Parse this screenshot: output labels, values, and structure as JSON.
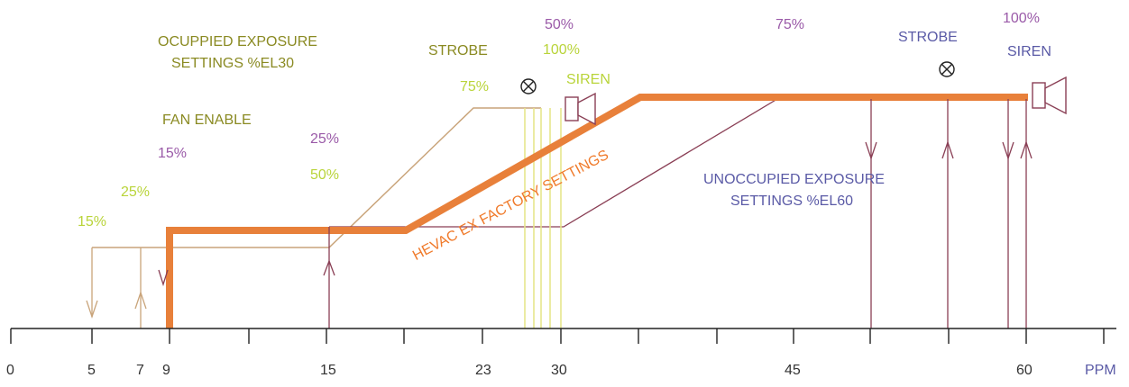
{
  "labels": {
    "occupied_line1": "OCUPPIED EXPOSURE",
    "occupied_line2": "SETTINGS %EL30",
    "fan_enable": "FAN ENABLE",
    "strobe_left": "STROBE",
    "siren_left": "SIREN",
    "strobe_right": "STROBE",
    "siren_right": "SIREN",
    "unoccupied_line1": "UNOCCUPIED EXPOSURE",
    "unoccupied_line2": "SETTINGS %EL60",
    "hevac": "HEVAC EX FACTORY SETTINGS",
    "ppm": "PPM"
  },
  "percentages": {
    "p15_purple": "15%",
    "p25_purple": "25%",
    "p50_purple": "50%",
    "p75_purple": "75%",
    "p100_purple": "100%",
    "p15_green": "15%",
    "p25_green": "25%",
    "p50_green": "50%",
    "p75_green": "75%",
    "p100_green": "100%"
  },
  "axis": {
    "ticks": [
      "0",
      "5",
      "7",
      "9",
      "15",
      "23",
      "30",
      "45",
      "60"
    ]
  },
  "colors": {
    "hevac_line": "#e8803a",
    "occupied_line": "#c9a47a",
    "unoccupied_line": "#8a3f55",
    "strobe_bars": "#e6e68c",
    "olive_text": "#8a8a22",
    "purple_text": "#9a5aa8",
    "green_text": "#b9d43a",
    "blue_text": "#5a5aa6"
  },
  "icons": [
    "strobe-icon",
    "siren-icon"
  ]
}
